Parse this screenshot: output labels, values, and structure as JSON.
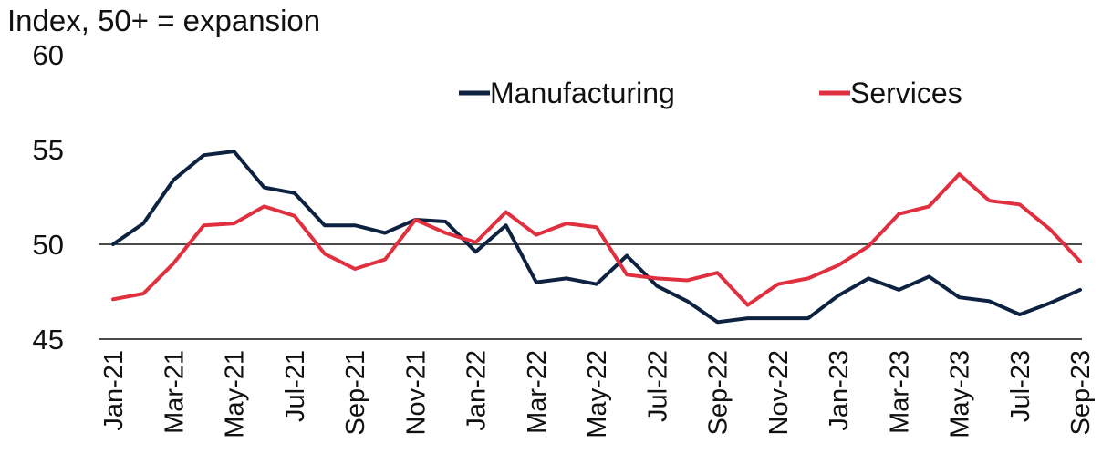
{
  "chart_data": {
    "type": "line",
    "ylabel": "Index, 50+ = expansion",
    "ylim": [
      45,
      60
    ],
    "yticks": [
      45,
      50,
      55,
      60
    ],
    "reference_line": 50,
    "x": [
      "Jan-21",
      "Feb-21",
      "Mar-21",
      "Apr-21",
      "May-21",
      "Jun-21",
      "Jul-21",
      "Aug-21",
      "Sep-21",
      "Oct-21",
      "Nov-21",
      "Dec-21",
      "Jan-22",
      "Feb-22",
      "Mar-22",
      "Apr-22",
      "May-22",
      "Jun-22",
      "Jul-22",
      "Aug-22",
      "Sep-22",
      "Oct-22",
      "Nov-22",
      "Dec-22",
      "Jan-23",
      "Feb-23",
      "Mar-23",
      "Apr-23",
      "May-23",
      "Jun-23",
      "Jul-23",
      "Aug-23",
      "Sep-23"
    ],
    "xtick_labels": [
      "Jan-21",
      "Mar-21",
      "May-21",
      "Jul-21",
      "Sep-21",
      "Nov-21",
      "Jan-22",
      "Mar-22",
      "May-22",
      "Jul-22",
      "Sep-22",
      "Nov-22",
      "Jan-23",
      "Mar-23",
      "May-23",
      "Jul-23",
      "Sep-23"
    ],
    "legend_position": "top-right",
    "series": [
      {
        "name": "Manufacturing",
        "color": "#0d2240",
        "values": [
          50.0,
          51.1,
          53.4,
          54.7,
          54.9,
          53.0,
          52.7,
          51.0,
          51.0,
          50.6,
          51.3,
          51.2,
          49.6,
          51.0,
          48.0,
          48.2,
          47.9,
          49.4,
          47.8,
          47.0,
          45.9,
          46.1,
          46.1,
          46.1,
          47.3,
          48.2,
          47.6,
          48.3,
          47.2,
          47.0,
          46.3,
          46.9,
          47.6
        ]
      },
      {
        "name": "Services",
        "color": "#e0303f",
        "values": [
          47.1,
          47.4,
          49.0,
          51.0,
          51.1,
          52.0,
          51.5,
          49.5,
          48.7,
          49.2,
          51.3,
          50.6,
          50.1,
          51.7,
          50.5,
          51.1,
          50.9,
          48.4,
          48.2,
          48.1,
          48.5,
          46.8,
          47.9,
          48.2,
          48.9,
          49.9,
          51.6,
          52.0,
          53.7,
          52.3,
          52.1,
          50.8,
          49.1
        ]
      }
    ]
  }
}
